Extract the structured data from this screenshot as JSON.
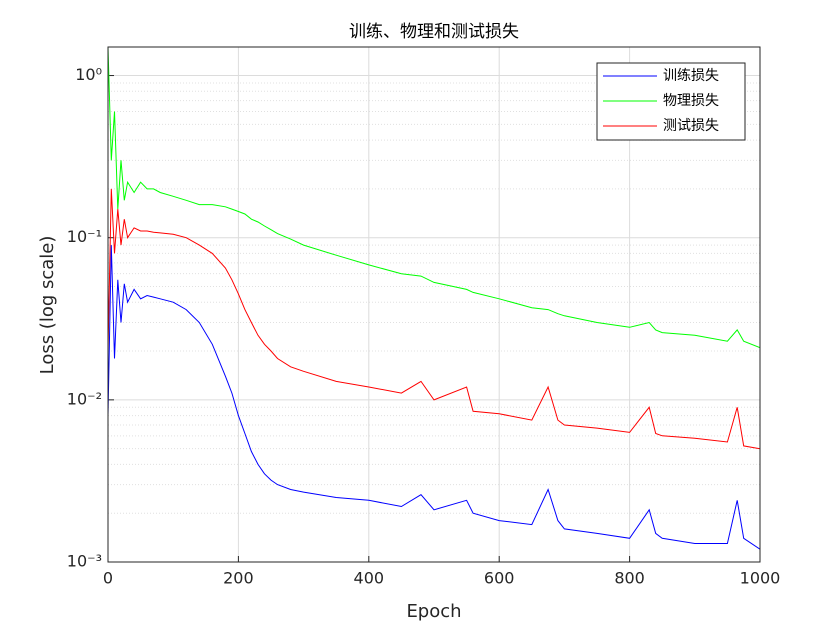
{
  "chart_data": {
    "type": "line",
    "title": "训练、物理和测试损失",
    "xlabel": "Epoch",
    "ylabel": "Loss (log scale)",
    "x": [
      0,
      5,
      10,
      15,
      20,
      25,
      30,
      40,
      50,
      60,
      70,
      80,
      100,
      120,
      140,
      160,
      180,
      190,
      200,
      210,
      220,
      230,
      240,
      250,
      260,
      280,
      300,
      350,
      400,
      450,
      480,
      500,
      550,
      560,
      600,
      650,
      675,
      690,
      700,
      750,
      800,
      830,
      840,
      850,
      900,
      950,
      965,
      975,
      1000
    ],
    "series": [
      {
        "name": "训练损失",
        "color": "#0000ff",
        "values": [
          0.008,
          0.09,
          0.018,
          0.055,
          0.03,
          0.052,
          0.04,
          0.048,
          0.042,
          0.044,
          0.043,
          0.042,
          0.04,
          0.036,
          0.03,
          0.022,
          0.014,
          0.011,
          0.008,
          0.0062,
          0.0048,
          0.004,
          0.0035,
          0.0032,
          0.003,
          0.0028,
          0.0027,
          0.0025,
          0.0024,
          0.0022,
          0.0026,
          0.0021,
          0.0024,
          0.002,
          0.0018,
          0.0017,
          0.0028,
          0.0018,
          0.0016,
          0.0015,
          0.0014,
          0.0021,
          0.0015,
          0.0014,
          0.0013,
          0.0013,
          0.0024,
          0.0014,
          0.0012
        ]
      },
      {
        "name": "物理损失",
        "color": "#00ff00",
        "values": [
          1.5,
          0.3,
          0.6,
          0.15,
          0.3,
          0.17,
          0.22,
          0.19,
          0.22,
          0.2,
          0.2,
          0.19,
          0.18,
          0.17,
          0.16,
          0.16,
          0.155,
          0.15,
          0.145,
          0.14,
          0.13,
          0.125,
          0.118,
          0.112,
          0.106,
          0.098,
          0.09,
          0.078,
          0.068,
          0.06,
          0.058,
          0.053,
          0.048,
          0.046,
          0.042,
          0.037,
          0.036,
          0.034,
          0.033,
          0.03,
          0.028,
          0.03,
          0.027,
          0.026,
          0.025,
          0.023,
          0.027,
          0.023,
          0.021
        ]
      },
      {
        "name": "测试损失",
        "color": "#ff0000",
        "values": [
          0.02,
          0.2,
          0.08,
          0.15,
          0.09,
          0.13,
          0.1,
          0.115,
          0.11,
          0.11,
          0.108,
          0.107,
          0.105,
          0.1,
          0.09,
          0.08,
          0.065,
          0.055,
          0.045,
          0.036,
          0.03,
          0.025,
          0.022,
          0.02,
          0.018,
          0.016,
          0.015,
          0.013,
          0.012,
          0.011,
          0.013,
          0.01,
          0.012,
          0.0085,
          0.0082,
          0.0075,
          0.012,
          0.0075,
          0.007,
          0.0067,
          0.0063,
          0.009,
          0.0062,
          0.006,
          0.0058,
          0.0055,
          0.009,
          0.0052,
          0.005
        ]
      }
    ],
    "xlim": [
      0,
      1000
    ],
    "xticks": [
      0,
      200,
      400,
      600,
      800,
      1000
    ],
    "ylim": [
      0.001,
      1.5
    ],
    "yscale": "log",
    "yticks": [
      {
        "value": 0.001,
        "label": "10⁻³"
      },
      {
        "value": 0.01,
        "label": "10⁻²"
      },
      {
        "value": 0.1,
        "label": "10⁻¹"
      },
      {
        "value": 1,
        "label": "10⁰"
      }
    ],
    "grid": true,
    "minor_grid": true,
    "legend": "upper right"
  }
}
